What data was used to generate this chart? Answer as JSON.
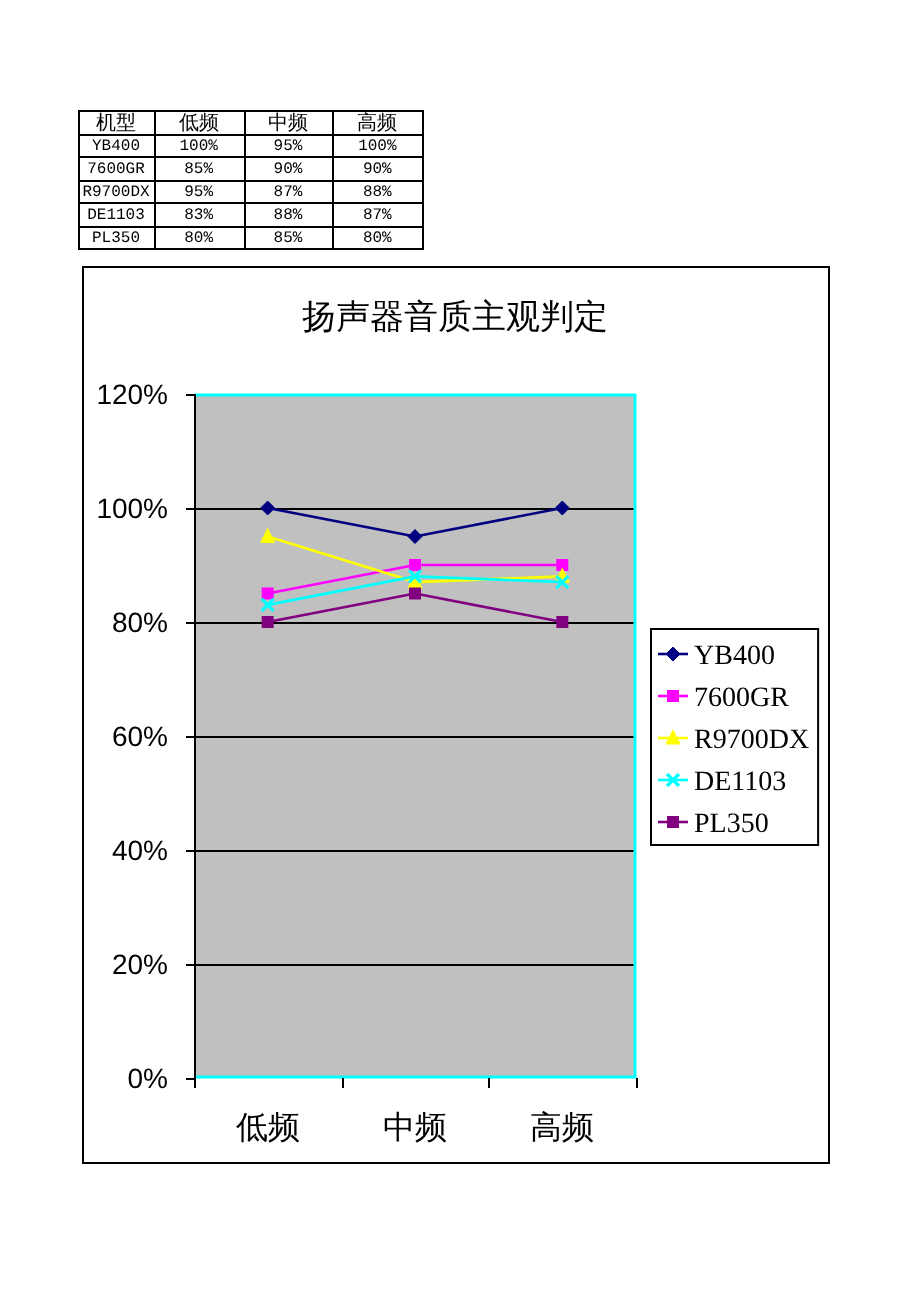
{
  "chart_data": [
    {
      "type": "heatmap",
      "ylabel": "机型",
      "categories": [
        "低频",
        "中频",
        "高频"
      ],
      "y_categories": [
        "YB400",
        "7600GR",
        "R9700DX",
        "DE1103",
        "PL350"
      ],
      "cells": [
        [
          100,
          95,
          100
        ],
        [
          85,
          90,
          90
        ],
        [
          95,
          87,
          88
        ],
        [
          83,
          88,
          87
        ],
        [
          80,
          85,
          80
        ]
      ],
      "cell_labels": [
        [
          "100%",
          "95%",
          "100%"
        ],
        [
          "85%",
          "90%",
          "90%"
        ],
        [
          "95%",
          "87%",
          "88%"
        ],
        [
          "83%",
          "88%",
          "87%"
        ],
        [
          "80%",
          "85%",
          "80%"
        ]
      ]
    },
    {
      "type": "line",
      "title": "扬声器音质主观判定",
      "categories": [
        "低频",
        "中频",
        "高频"
      ],
      "series": [
        {
          "name": "YB400",
          "color": "#000080",
          "marker": "diamond",
          "values": [
            100,
            95,
            100
          ]
        },
        {
          "name": "7600GR",
          "color": "#ff00ff",
          "marker": "square",
          "values": [
            85,
            90,
            90
          ]
        },
        {
          "name": "R9700DX",
          "color": "#ffff00",
          "marker": "triangle",
          "values": [
            95,
            87,
            88
          ]
        },
        {
          "name": "DE1103",
          "color": "#00ffff",
          "marker": "cross",
          "values": [
            83,
            88,
            87
          ]
        },
        {
          "name": "PL350",
          "color": "#800080",
          "marker": "square",
          "values": [
            80,
            85,
            80
          ]
        }
      ],
      "ylim": [
        0,
        120
      ],
      "yticks": [
        {
          "value": 0,
          "label": "0%"
        },
        {
          "value": 20,
          "label": "20%"
        },
        {
          "value": 40,
          "label": "40%"
        },
        {
          "value": 60,
          "label": "60%"
        },
        {
          "value": 80,
          "label": "80%"
        },
        {
          "value": 100,
          "label": "100%"
        },
        {
          "value": 120,
          "label": "120%"
        }
      ],
      "grid": "y",
      "legend": "right"
    }
  ]
}
